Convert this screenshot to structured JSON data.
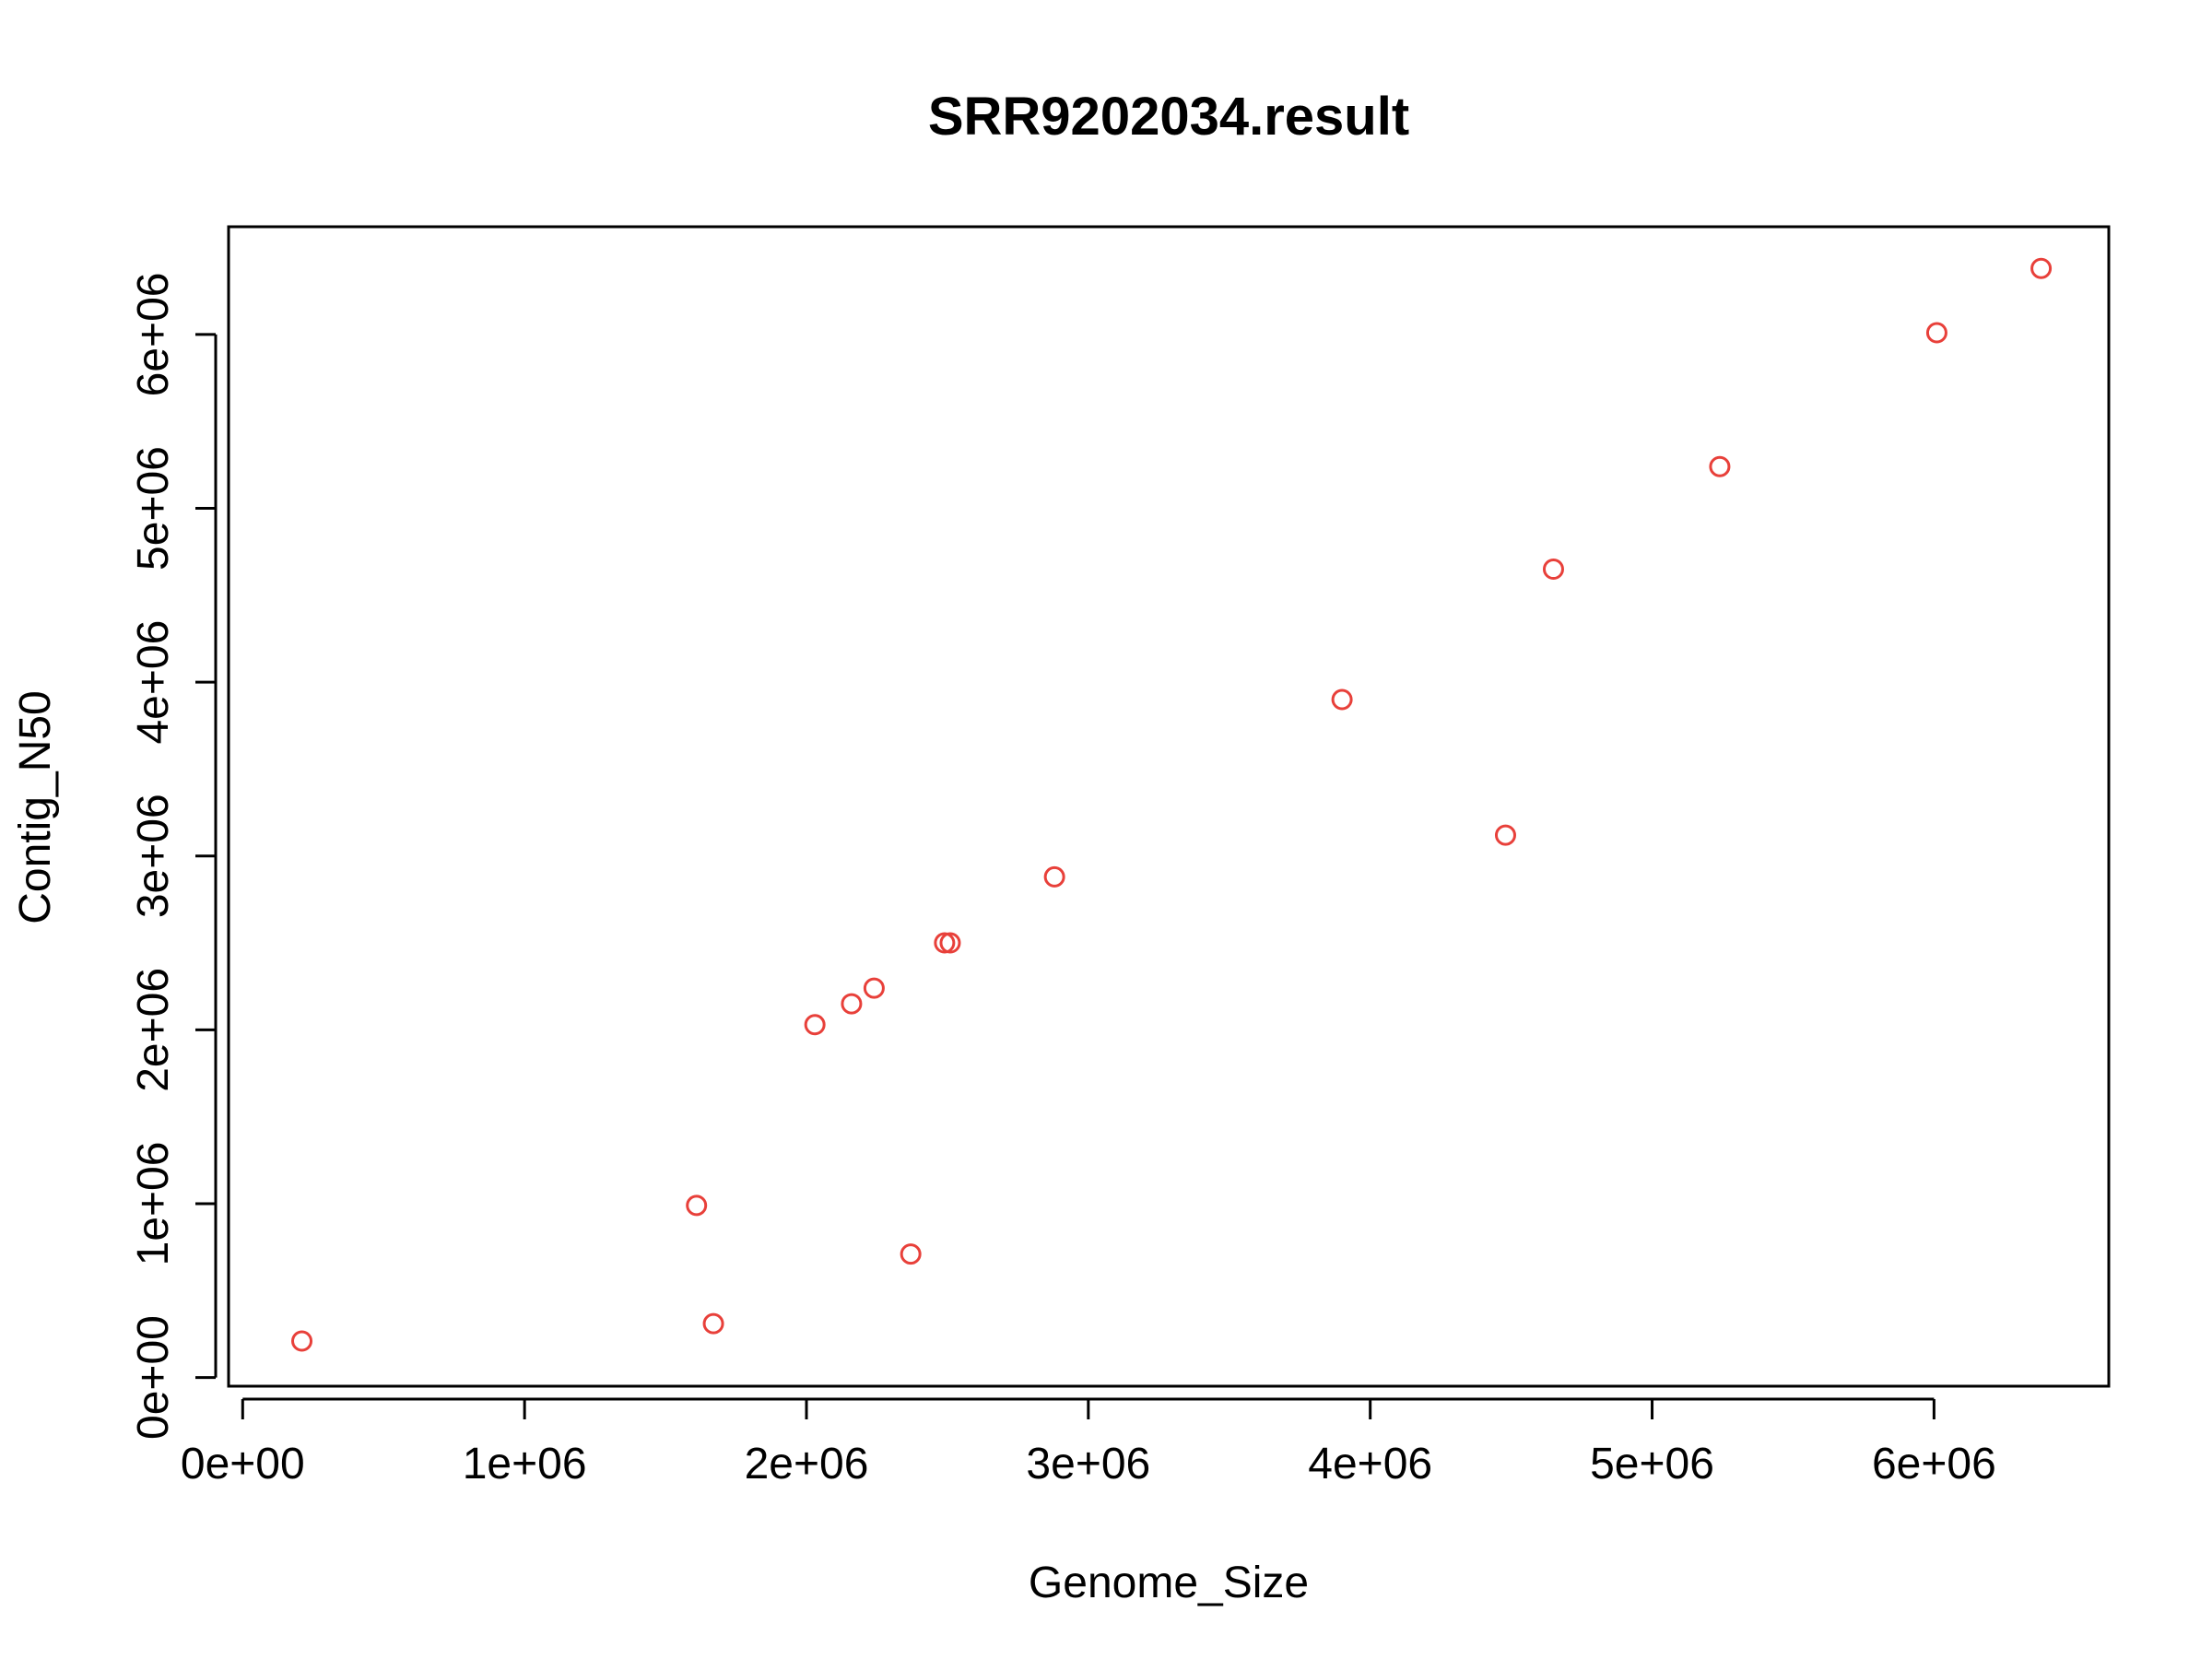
{
  "chart_data": {
    "type": "scatter",
    "title": "SRR9202034.result",
    "xlabel": "Genome_Size",
    "ylabel": "Contig_N50",
    "xlim": [
      -50000,
      6620000
    ],
    "ylim": [
      -50000,
      6620000
    ],
    "x_ticks": [
      {
        "value": 0,
        "label": "0e+00"
      },
      {
        "value": 1000000,
        "label": "1e+06"
      },
      {
        "value": 2000000,
        "label": "2e+06"
      },
      {
        "value": 3000000,
        "label": "3e+06"
      },
      {
        "value": 4000000,
        "label": "4e+06"
      },
      {
        "value": 5000000,
        "label": "5e+06"
      },
      {
        "value": 6000000,
        "label": "6e+06"
      }
    ],
    "y_ticks": [
      {
        "value": 0,
        "label": "0e+00"
      },
      {
        "value": 1000000,
        "label": "1e+06"
      },
      {
        "value": 2000000,
        "label": "2e+06"
      },
      {
        "value": 3000000,
        "label": "3e+06"
      },
      {
        "value": 4000000,
        "label": "4e+06"
      },
      {
        "value": 5000000,
        "label": "5e+06"
      },
      {
        "value": 6000000,
        "label": "6e+06"
      }
    ],
    "grid": false,
    "legend": "none",
    "point_color": "#e8403a",
    "points": [
      {
        "x": 210000,
        "y": 210000
      },
      {
        "x": 1610000,
        "y": 990000
      },
      {
        "x": 1670000,
        "y": 310000
      },
      {
        "x": 2030000,
        "y": 2030000
      },
      {
        "x": 2160000,
        "y": 2150000
      },
      {
        "x": 2240000,
        "y": 2240000
      },
      {
        "x": 2370000,
        "y": 710000
      },
      {
        "x": 2490000,
        "y": 2500000
      },
      {
        "x": 2510000,
        "y": 2500000
      },
      {
        "x": 2880000,
        "y": 2880000
      },
      {
        "x": 3900000,
        "y": 3900000
      },
      {
        "x": 4480000,
        "y": 3120000
      },
      {
        "x": 4650000,
        "y": 4650000
      },
      {
        "x": 5240000,
        "y": 5240000
      },
      {
        "x": 6010000,
        "y": 6010000
      },
      {
        "x": 6380000,
        "y": 6380000
      }
    ]
  }
}
